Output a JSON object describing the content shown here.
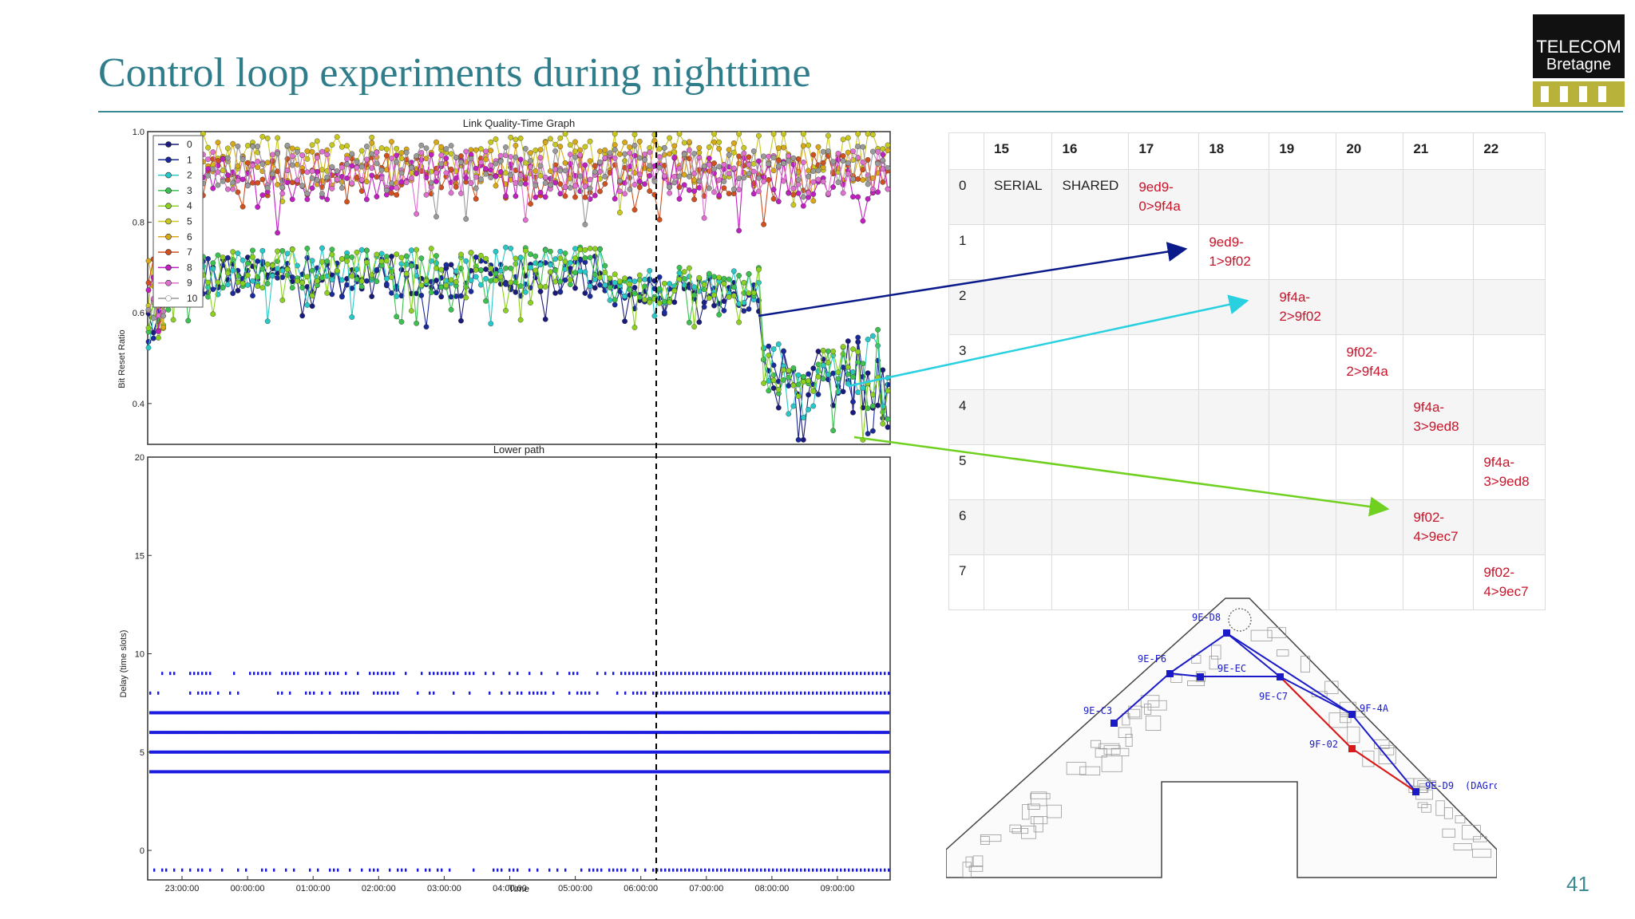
{
  "slide": {
    "title": "Control loop experiments during nighttime",
    "page_number": "41",
    "logo_line1": "TELECOM",
    "logo_line2": "Bretagne"
  },
  "chart_data": [
    {
      "type": "line",
      "title": "Link Quality-Time Graph",
      "xlabel": "",
      "ylabel": "Bit Reset Ratio",
      "yticks": [
        "0.4",
        "0.6",
        "0.8",
        "1.0"
      ],
      "ylim": [
        0.31,
        1.0
      ],
      "legend": [
        "0",
        "1",
        "2",
        "3",
        "4",
        "5",
        "6",
        "7",
        "8",
        "9",
        "10"
      ],
      "legend_position": "top-left",
      "series_colors": [
        "#1a1a7a",
        "#1a2a9a",
        "#28c8c8",
        "#3cc050",
        "#8cd020",
        "#c8c820",
        "#d8a818",
        "#d05020",
        "#c020c0",
        "#e070d0",
        "#9a9a9a"
      ],
      "series_summary": [
        {
          "name": "0",
          "approx_level": 0.68,
          "note": "lower group, drops to ~0.35 after 08:00"
        },
        {
          "name": "1",
          "approx_level": 0.68
        },
        {
          "name": "2",
          "approx_level": 0.7
        },
        {
          "name": "3",
          "approx_level": 0.7
        },
        {
          "name": "4",
          "approx_level": 0.7
        },
        {
          "name": "5",
          "approx_level": 0.95
        },
        {
          "name": "6",
          "approx_level": 0.93
        },
        {
          "name": "7",
          "approx_level": 0.9
        },
        {
          "name": "8",
          "approx_level": 0.9
        },
        {
          "name": "9",
          "approx_level": 0.91
        },
        {
          "name": "10",
          "approx_level": 0.92
        }
      ],
      "vline_time": "06:15"
    },
    {
      "type": "scatter",
      "title": "Lower path",
      "xlabel": "Time",
      "ylabel": "Delay (time slots)",
      "yticks": [
        "0",
        "5",
        "10",
        "15",
        "20"
      ],
      "ylim": [
        -1.5,
        20
      ],
      "xticks": [
        "23:00:00",
        "00:00:00",
        "01:00:00",
        "02:00:00",
        "03:00:00",
        "04:00:00",
        "05:00:00",
        "06:00:00",
        "07:00:00",
        "08:00:00",
        "09:00:00"
      ],
      "delay_levels": [
        -1,
        4,
        5,
        6,
        7,
        8,
        9
      ],
      "vline_time": "06:15"
    }
  ],
  "schedule": {
    "columns": [
      "",
      "15",
      "16",
      "17",
      "18",
      "19",
      "20",
      "21",
      "22"
    ],
    "rows": [
      [
        "0",
        "SERIAL",
        "SHARED",
        "9ed9-\n0>9f4a",
        "",
        "",
        "",
        "",
        ""
      ],
      [
        "1",
        "",
        "",
        "",
        "9ed9-\n1>9f02",
        "",
        "",
        "",
        ""
      ],
      [
        "2",
        "",
        "",
        "",
        "",
        "9f4a-\n2>9f02",
        "",
        "",
        ""
      ],
      [
        "3",
        "",
        "",
        "",
        "",
        "",
        "9f02-\n2>9f4a",
        "",
        ""
      ],
      [
        "4",
        "",
        "",
        "",
        "",
        "",
        "",
        "9f4a-\n3>9ed8",
        ""
      ],
      [
        "5",
        "",
        "",
        "",
        "",
        "",
        "",
        "",
        "9f4a-\n3>9ed8"
      ],
      [
        "6",
        "",
        "",
        "",
        "",
        "",
        "",
        "9f02-\n4>9ec7",
        ""
      ],
      [
        "7",
        "",
        "",
        "",
        "",
        "",
        "",
        "",
        "9f02-\n4>9ec7"
      ]
    ]
  },
  "floorplan": {
    "nodes": [
      "9E-D8",
      "9E-F6",
      "9E-EC",
      "9E-C7",
      "9E-C3",
      "9F-4A",
      "9F-02",
      "9E-D9"
    ],
    "dagroot_label": "(DAGroot)"
  }
}
